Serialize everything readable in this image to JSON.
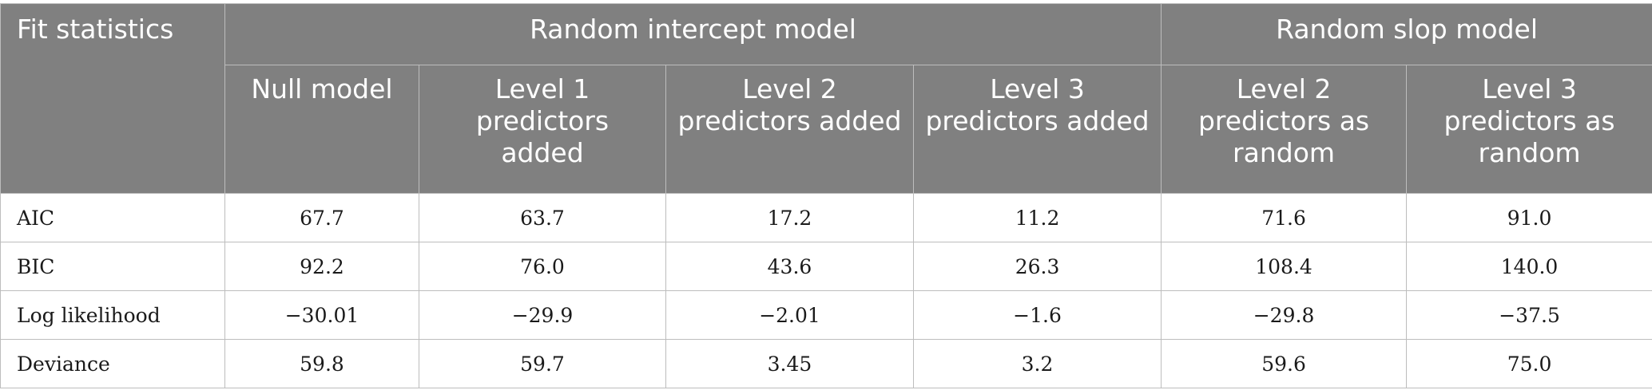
{
  "header": {
    "fit_label": "Fit statistics",
    "group_random_intercept": "Random intercept model",
    "group_random_slope": "Random slop model",
    "columns": [
      "Null model",
      "Level 1 predictors added",
      "Level 2 predictors added",
      "Level 3 predictors added",
      "Level 2 predictors as random",
      "Level 3 predictors as random"
    ]
  },
  "rows": [
    {
      "label": "AIC",
      "values": [
        "67.7",
        "63.7",
        "17.2",
        "11.2",
        "71.6",
        "91.0"
      ]
    },
    {
      "label": "BIC",
      "values": [
        "92.2",
        "76.0",
        "43.6",
        "26.3",
        "108.4",
        "140.0"
      ]
    },
    {
      "label": "Log likelihood",
      "values": [
        "−30.01",
        "−29.9",
        "−2.01",
        "−1.6",
        "−29.8",
        "−37.5"
      ]
    },
    {
      "label": "Deviance",
      "values": [
        "59.8",
        "59.7",
        "3.45",
        "3.2",
        "59.6",
        "75.0"
      ]
    }
  ]
}
